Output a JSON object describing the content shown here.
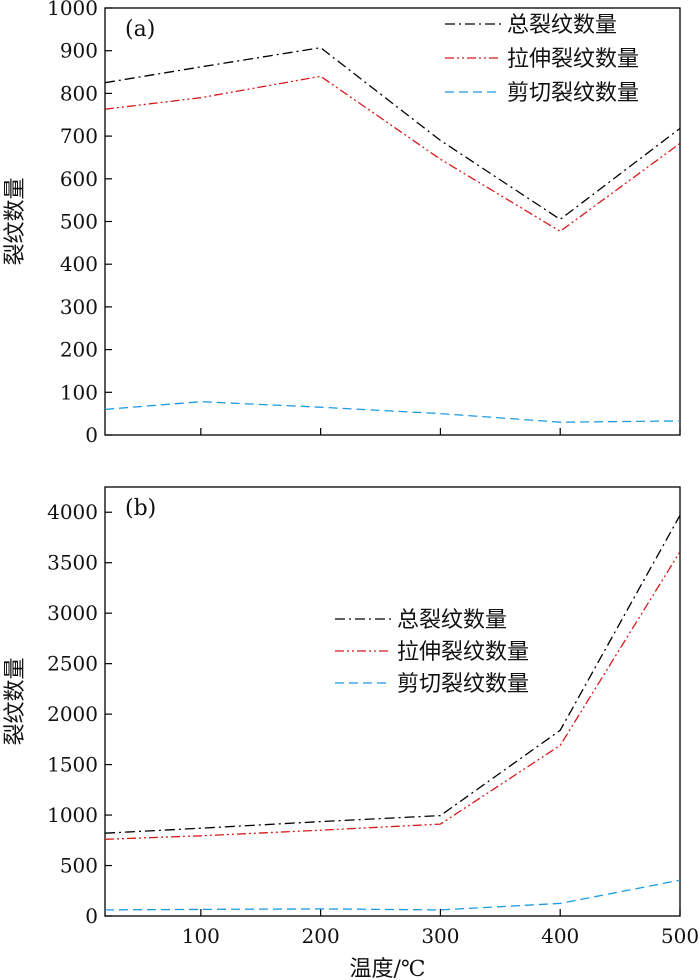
{
  "chart_data": [
    {
      "type": "line",
      "panel_label": "(a)",
      "ylabel": "裂纹数量",
      "xlim": [
        20,
        500
      ],
      "ylim": [
        0,
        1000
      ],
      "xticks": [
        100,
        200,
        300,
        400,
        500
      ],
      "yticks": [
        0,
        100,
        200,
        300,
        400,
        500,
        600,
        700,
        800,
        900,
        1000
      ],
      "show_xtick_labels": false,
      "legend_position": "top-right",
      "x": [
        20,
        100,
        200,
        300,
        400,
        500
      ],
      "series": [
        {
          "name": "总裂纹数量",
          "color": "#000000",
          "style": "dash-dot",
          "values": [
            825,
            862,
            907,
            690,
            505,
            718
          ]
        },
        {
          "name": "拉伸裂纹数量",
          "color": "#d7191c",
          "style": "dash-dot-dot",
          "values": [
            763,
            790,
            840,
            646,
            477,
            683
          ]
        },
        {
          "name": "剪切裂纹数量",
          "color": "#1c9be0",
          "style": "dashed",
          "values": [
            60,
            78,
            65,
            50,
            30,
            33
          ]
        }
      ]
    },
    {
      "type": "line",
      "panel_label": "(b)",
      "ylabel": "裂纹数量",
      "xlabel": "温度/℃",
      "xlim": [
        20,
        500
      ],
      "ylim": [
        0,
        4250
      ],
      "xticks": [
        100,
        200,
        300,
        400,
        500
      ],
      "yticks": [
        0,
        500,
        1000,
        1500,
        2000,
        2500,
        3000,
        3500,
        4000
      ],
      "show_xtick_labels": true,
      "legend_position": "center-right",
      "x": [
        20,
        100,
        200,
        300,
        400,
        500
      ],
      "series": [
        {
          "name": "总裂纹数量",
          "color": "#000000",
          "style": "dash-dot",
          "values": [
            820,
            870,
            935,
            995,
            1840,
            3970
          ]
        },
        {
          "name": "拉伸裂纹数量",
          "color": "#d7191c",
          "style": "dash-dot-dot",
          "values": [
            760,
            795,
            850,
            910,
            1690,
            3610
          ]
        },
        {
          "name": "剪切裂纹数量",
          "color": "#1c9be0",
          "style": "dashed",
          "values": [
            60,
            65,
            70,
            60,
            125,
            355
          ]
        }
      ]
    }
  ]
}
